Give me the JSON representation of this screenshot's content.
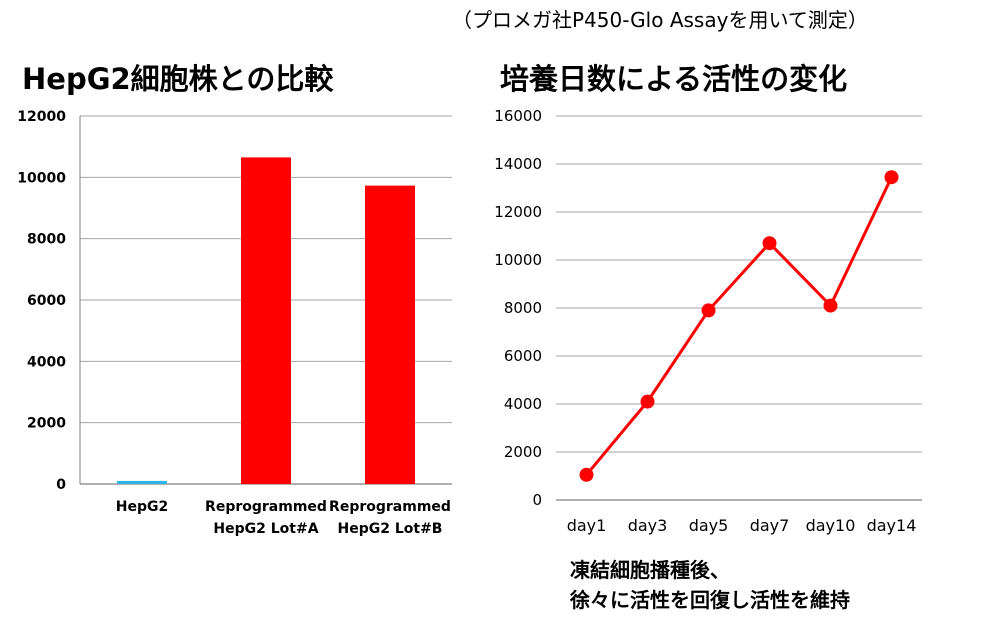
{
  "header": {
    "note": "（プロメガ社P450-Glo  Assayを用いて測定）"
  },
  "charts_text": {
    "left_title": "HepG2細胞株との比較",
    "right_title": "培養日数による活性の変化"
  },
  "caption": {
    "line1": "凍結細胞播種後、",
    "line2": "徐々に活性を回復し活性を維持"
  },
  "colors": {
    "hepg2_bar": "#2FB4E8",
    "reprogrammed_bar": "#FF0000",
    "line": "#FF0000",
    "grid": "#A6A6A6"
  },
  "chart_data": [
    {
      "type": "bar",
      "title": "HepG2細胞株との比較",
      "categories": [
        [
          "HepG2"
        ],
        [
          "Reprogrammed",
          "HepG2 Lot#A"
        ],
        [
          "Reprogrammed",
          "HepG2 Lot#B"
        ]
      ],
      "values": [
        100,
        10650,
        9730
      ],
      "bar_colors": [
        "#2FB4E8",
        "#FF0000",
        "#FF0000"
      ],
      "ylim": [
        0,
        12000
      ],
      "yticks": [
        0,
        2000,
        4000,
        6000,
        8000,
        10000,
        12000
      ],
      "grid": true,
      "legend": "none"
    },
    {
      "type": "line",
      "title": "培養日数による活性の変化",
      "categories": [
        "day1",
        "day3",
        "day5",
        "day7",
        "day10",
        "day14"
      ],
      "values": [
        1050,
        4100,
        7900,
        10700,
        8100,
        13450
      ],
      "ylim": [
        0,
        16000
      ],
      "yticks": [
        0,
        2000,
        4000,
        6000,
        8000,
        10000,
        12000,
        14000,
        16000
      ],
      "grid": true,
      "legend": "none"
    }
  ]
}
